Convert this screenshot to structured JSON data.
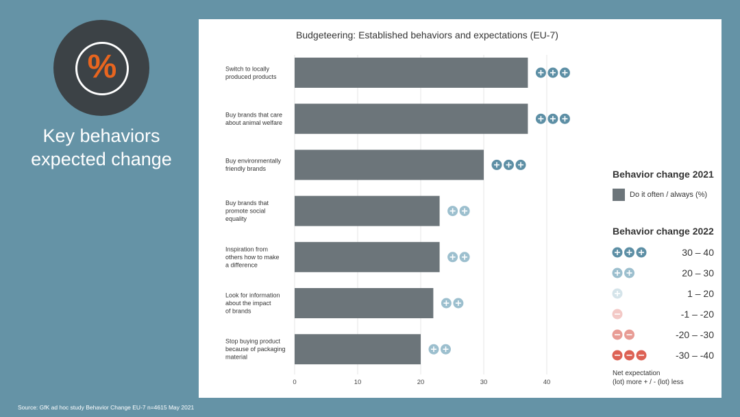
{
  "sidebar": {
    "icon": "percent-icon",
    "title_line1": "Key behaviors",
    "title_line2": "expected change",
    "accent": "#e8651f"
  },
  "source": "Source: GfK ad hoc study Behavior Change EU-7 n=4615 May 2021",
  "chart_data": {
    "type": "bar",
    "orientation": "horizontal",
    "title": "Budgeteering: Established behaviors and expectations (EU-7)",
    "categories": [
      [
        "Switch to locally",
        "produced products"
      ],
      [
        "Buy brands that care",
        "about animal welfare"
      ],
      [
        "Buy environmentally",
        "friendly brands"
      ],
      [
        "Buy brands that",
        "promote social",
        "equality"
      ],
      [
        "Inspiration from",
        "others how to make",
        "a difference"
      ],
      [
        "Look for information",
        "about the impact",
        "of brands"
      ],
      [
        "Stop buying product",
        "because of packaging",
        "material"
      ]
    ],
    "values": [
      37,
      37,
      30,
      23,
      23,
      22,
      20
    ],
    "change_2022_plus_count": [
      3,
      3,
      3,
      2,
      2,
      2,
      2
    ],
    "xlim": [
      0,
      45
    ],
    "xticks": [
      0,
      10,
      20,
      30,
      40
    ],
    "grid": true,
    "bar_color": "#6c757a"
  },
  "legend": {
    "heading_2021": "Behavior change 2021",
    "series_label": "Do it often / always (%)",
    "heading_2022": "Behavior change 2022",
    "ranges": [
      {
        "label": "30 – 40",
        "sign": "+",
        "count": 3,
        "color": "#5d8fa5"
      },
      {
        "label": "20 – 30",
        "sign": "+",
        "count": 2,
        "color": "#9cbfce"
      },
      {
        "label": "1 – 20",
        "sign": "+",
        "count": 1,
        "color": "#d5e4ea"
      },
      {
        "label": "-1 – -20",
        "sign": "-",
        "count": 1,
        "color": "#f3c9c6"
      },
      {
        "label": "-20 – -30",
        "sign": "-",
        "count": 2,
        "color": "#e89c95"
      },
      {
        "label": "-30 – -40",
        "sign": "-",
        "count": 3,
        "color": "#dd6255"
      }
    ],
    "note_line1": "Net expectation",
    "note_line2": "(lot) more + / - (lot) less"
  }
}
